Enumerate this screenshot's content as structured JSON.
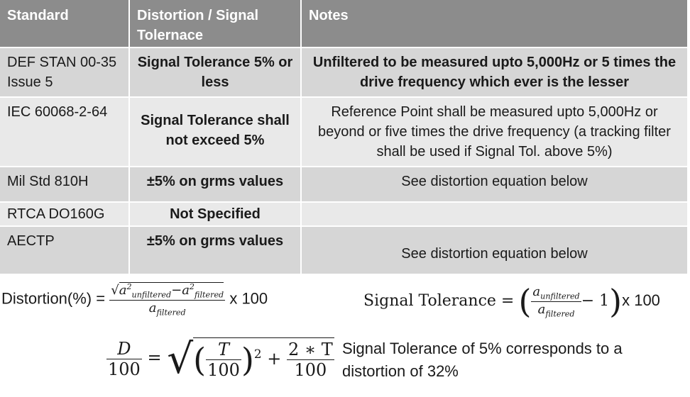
{
  "table": {
    "headers": [
      "Standard",
      "Distortion / Signal Tolernace",
      "Notes"
    ],
    "rows": [
      {
        "standard": "DEF STAN 00-35 Issue 5",
        "distortion": "Signal Tolerance 5% or less",
        "notes": "Unfiltered to be measured upto 5,000Hz or 5 times the drive frequency which ever is the lesser"
      },
      {
        "standard": "IEC 60068-2-64",
        "distortion": "Signal Tolerance shall not exceed 5%",
        "notes": "Reference Point shall be measured upto 5,000Hz or beyond or five times the drive frequency (a tracking filter shall be used if Signal Tol. above 5%)"
      },
      {
        "standard": "Mil Std 810H",
        "distortion": "±5% on grms values",
        "notes": "See distortion equation below"
      },
      {
        "standard": "RTCA DO160G",
        "distortion": "Not Specified",
        "notes": ""
      },
      {
        "standard": "AECTP",
        "distortion": "±5% on grms values",
        "notes": "See distortion equation below"
      }
    ]
  },
  "equations": {
    "distortion_label": "Distortion(%) =",
    "distortion_times": "x 100",
    "signal_label": "Signal Tolerance =",
    "signal_minus": "− 1",
    "signal_times": "x 100",
    "d_numerator": "D",
    "hundred": "100",
    "t_var": "T",
    "two_t": "2 ∗ T",
    "squared": "2",
    "a": "a",
    "unfiltered": "unfiltered",
    "filtered": "filtered"
  },
  "note": "Signal Tolerance of 5% corresponds to a distortion of 32%"
}
